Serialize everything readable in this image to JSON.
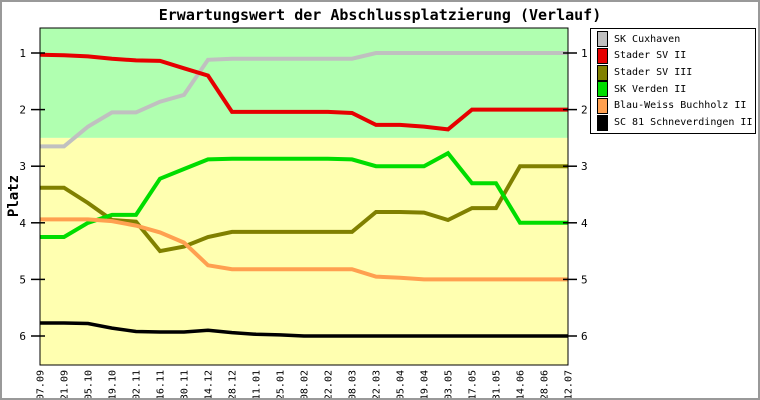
{
  "figure": {
    "background": "#FFFFFF",
    "border_color": "#999999"
  },
  "chart_data": {
    "type": "line",
    "title": "Erwartungswert der Abschlussplatzierung (Verlauf)",
    "ylabel": "Platz",
    "xlabel": "",
    "x_labels": [
      "07.09",
      "21.09",
      "05.10",
      "19.10",
      "02.11",
      "16.11",
      "30.11",
      "14.12",
      "28.12",
      "11.01",
      "25.01",
      "08.02",
      "22.02",
      "08.03",
      "22.03",
      "05.04",
      "19.04",
      "03.05",
      "17.05",
      "31.05",
      "14.06",
      "28.06",
      "12.07"
    ],
    "yticks": [
      1,
      2,
      3,
      4,
      5,
      6
    ],
    "ylim": [
      0.56,
      6.51
    ],
    "y_inverted": true,
    "grid": false,
    "legend_position": "outside-top-right",
    "zones": [
      {
        "name": "green-zone",
        "from": 0.56,
        "to": 2.5,
        "color": "#B0FFB0"
      },
      {
        "name": "yellow-zone",
        "from": 2.5,
        "to": 6.51,
        "color": "#FFFFB0"
      }
    ],
    "series": [
      {
        "name": "SK Cuxhaven",
        "color": "#C0C0C0",
        "values": [
          2.65,
          2.65,
          2.3,
          2.05,
          2.05,
          1.86,
          1.74,
          1.12,
          1.1,
          1.1,
          1.1,
          1.1,
          1.1,
          1.1,
          1.0,
          1.0,
          1.0,
          1.0,
          1.0,
          1.0,
          1.0,
          1.0,
          1.0
        ]
      },
      {
        "name": "Stader SV II",
        "color": "#E60000",
        "values": [
          1.03,
          1.04,
          1.06,
          1.1,
          1.13,
          1.14,
          1.27,
          1.4,
          2.04,
          2.04,
          2.04,
          2.04,
          2.04,
          2.06,
          2.27,
          2.27,
          2.3,
          2.35,
          2.0,
          2.0,
          2.0,
          2.0,
          2.0
        ]
      },
      {
        "name": "Stader SV III",
        "color": "#808000",
        "values": [
          3.38,
          3.38,
          3.65,
          3.95,
          3.98,
          4.5,
          4.42,
          4.25,
          4.16,
          4.16,
          4.16,
          4.16,
          4.16,
          4.16,
          3.81,
          3.81,
          3.82,
          3.95,
          3.74,
          3.74,
          3.0,
          3.0,
          3.0
        ]
      },
      {
        "name": "SK Verden II",
        "color": "#00DD00",
        "values": [
          4.25,
          4.25,
          4.0,
          3.86,
          3.86,
          3.22,
          3.05,
          2.88,
          2.87,
          2.87,
          2.87,
          2.87,
          2.87,
          2.88,
          3.0,
          3.0,
          3.0,
          2.77,
          3.3,
          3.3,
          4.0,
          4.0,
          4.0
        ]
      },
      {
        "name": "Blau-Weiss Buchholz II",
        "color": "#FFA050",
        "values": [
          3.94,
          3.94,
          3.94,
          3.97,
          4.05,
          4.17,
          4.35,
          4.75,
          4.82,
          4.82,
          4.82,
          4.82,
          4.82,
          4.82,
          4.95,
          4.97,
          5.0,
          5.0,
          5.0,
          5.0,
          5.0,
          5.0,
          5.0
        ]
      },
      {
        "name": "SC 81 Schneverdingen II",
        "color": "#000000",
        "values": [
          5.77,
          5.77,
          5.78,
          5.86,
          5.92,
          5.93,
          5.93,
          5.9,
          5.94,
          5.97,
          5.98,
          6.0,
          6.0,
          6.0,
          6.0,
          6.0,
          6.0,
          6.0,
          6.0,
          6.0,
          6.0,
          6.0,
          6.0
        ]
      }
    ]
  }
}
